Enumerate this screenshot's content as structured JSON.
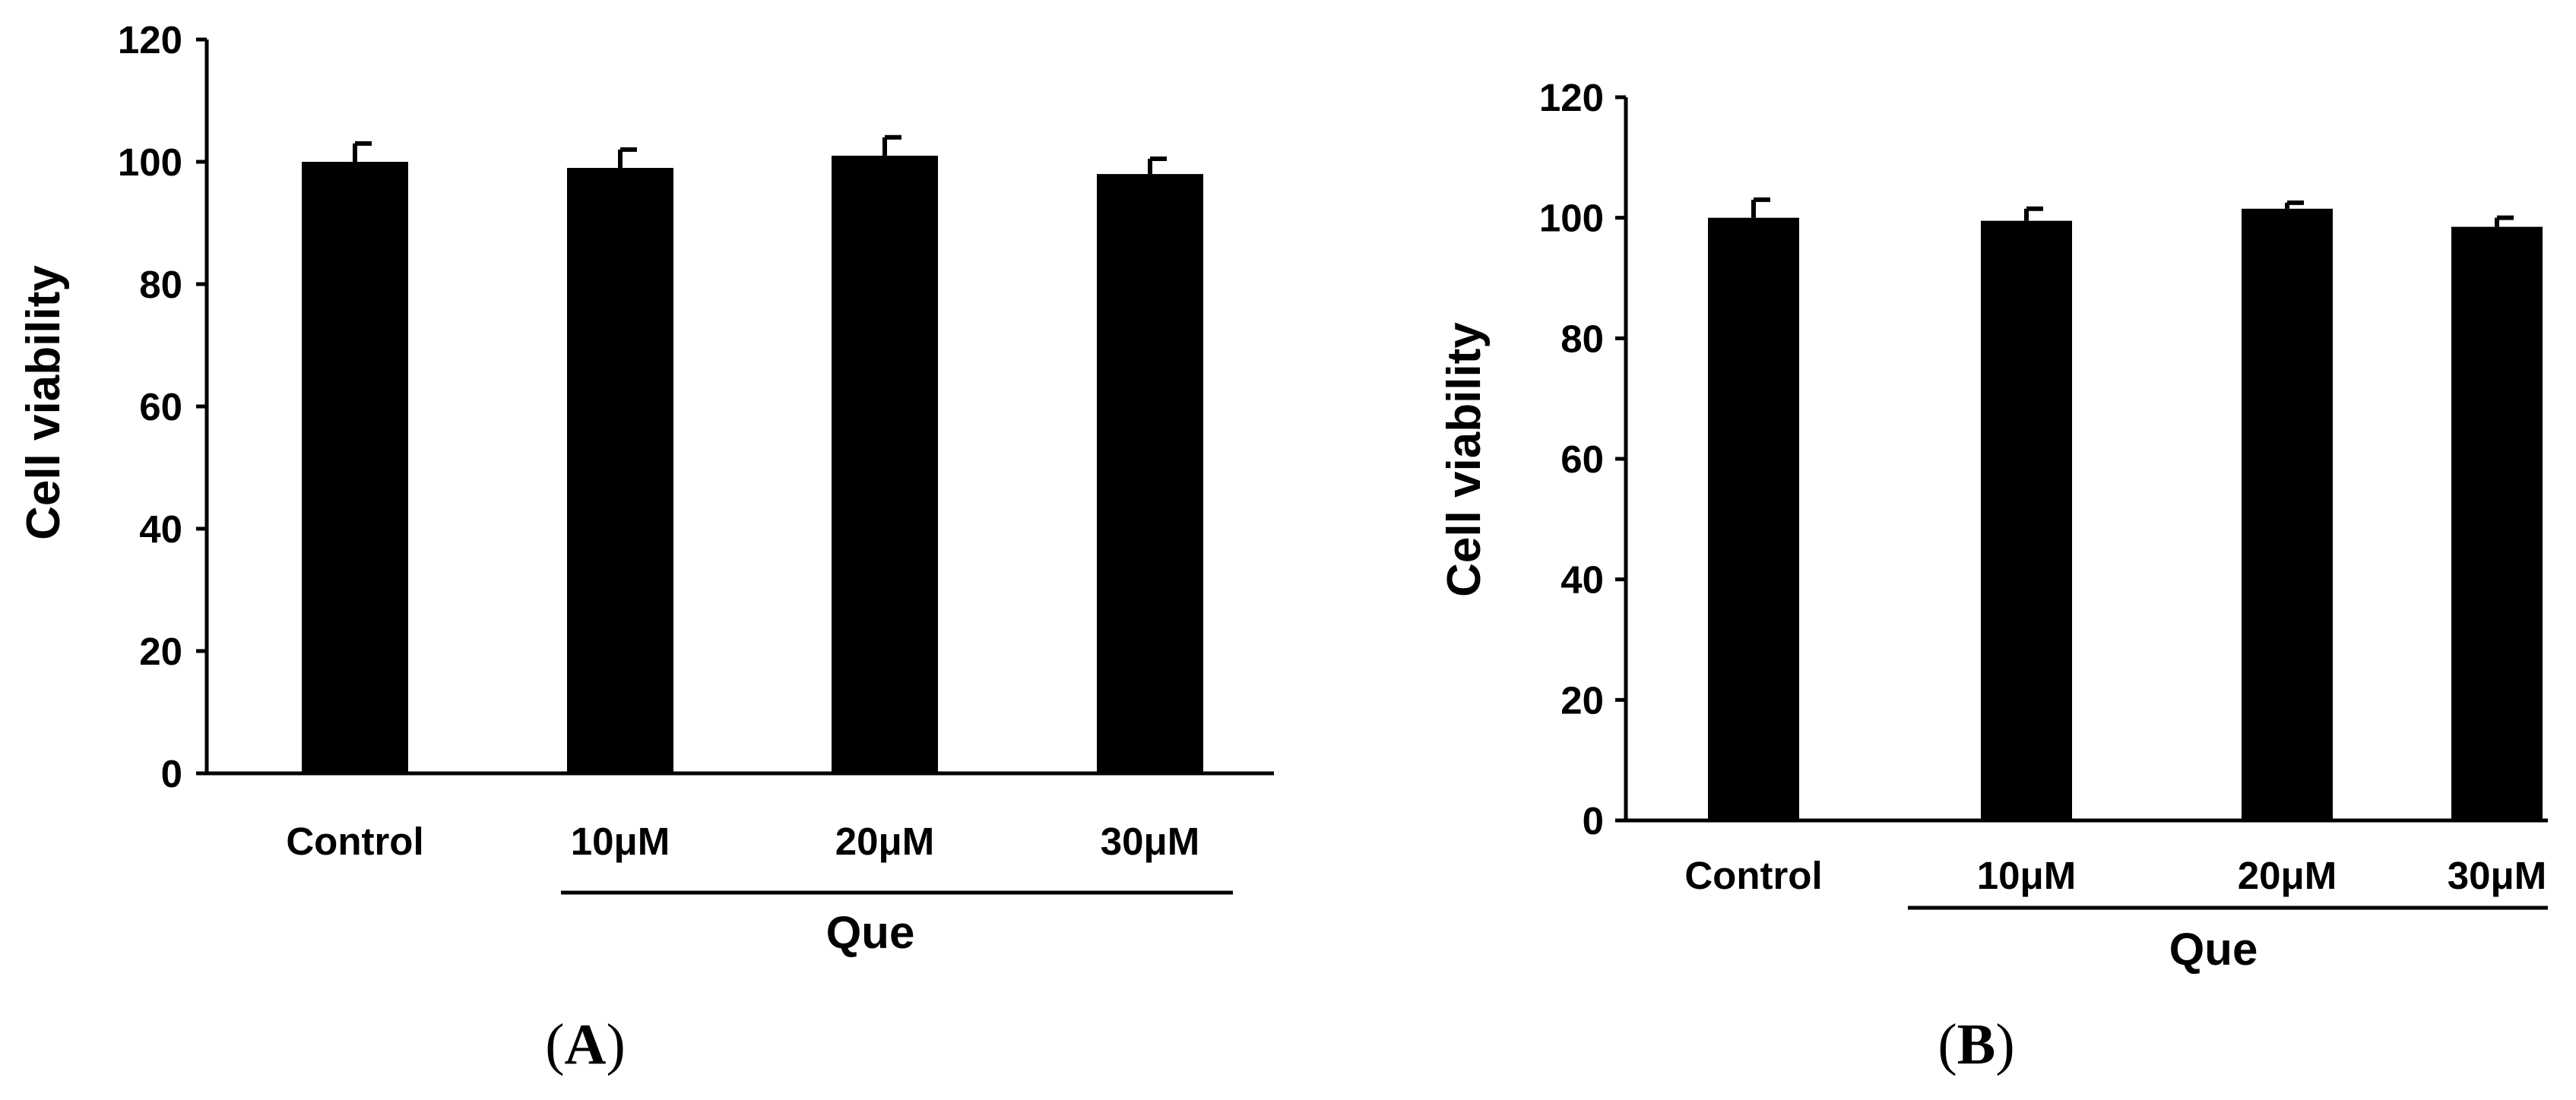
{
  "chart_data": [
    {
      "panel_label": "A",
      "type": "bar",
      "categories": [
        "Control",
        "10μM",
        "20μM",
        "30μM"
      ],
      "values": [
        100,
        99,
        101,
        98
      ],
      "errors": [
        3,
        3,
        3,
        2.5
      ],
      "ylabel": "Cell viability",
      "xlabel": "",
      "group_label": "Que",
      "group_members": [
        "10μM",
        "20μM",
        "30μM"
      ],
      "ylim": [
        0,
        120
      ],
      "yticks": [
        "0",
        "20",
        "40",
        "60",
        "80",
        "100",
        "120"
      ],
      "grid": false,
      "legend": "none",
      "bar_color": "#000000"
    },
    {
      "panel_label": "B",
      "type": "bar",
      "categories": [
        "Control",
        "10μM",
        "20μM",
        "30μM"
      ],
      "values": [
        100,
        99.5,
        101.5,
        98.5
      ],
      "errors": [
        3,
        2,
        1,
        1.5
      ],
      "ylabel": "Cell viability",
      "xlabel": "",
      "group_label": "Que",
      "group_members": [
        "10μM",
        "20μM",
        "30μM"
      ],
      "ylim": [
        0,
        120
      ],
      "yticks": [
        "0",
        "20",
        "40",
        "60",
        "80",
        "100",
        "120"
      ],
      "grid": false,
      "legend": "none",
      "bar_color": "#000000"
    }
  ]
}
